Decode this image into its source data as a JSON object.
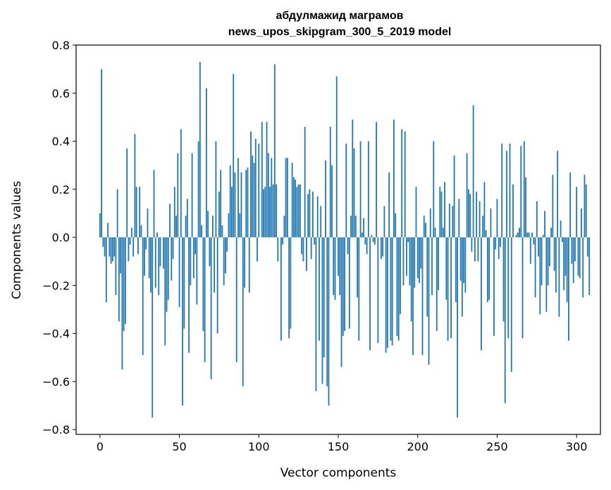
{
  "chart_data": {
    "type": "bar",
    "title": "абдулмажид маграмов",
    "subtitle": "news_upos_skipgram_300_5_2019 model",
    "xlabel": "Vector components",
    "ylabel": "Components values",
    "xlim": [
      -15,
      315
    ],
    "ylim": [
      -0.82,
      0.8
    ],
    "xticks": [
      0,
      50,
      100,
      150,
      200,
      250,
      300
    ],
    "xtick_labels": [
      "0",
      "50",
      "100",
      "150",
      "200",
      "250",
      "300"
    ],
    "yticks": [
      -0.8,
      -0.6,
      -0.4,
      -0.2,
      0.0,
      0.2,
      0.4,
      0.6,
      0.8
    ],
    "ytick_labels": [
      "−0.8",
      "−0.6",
      "−0.4",
      "−0.2",
      "0.0",
      "0.2",
      "0.4",
      "0.6",
      "0.8"
    ],
    "grid": false,
    "bar_color": "#1f77b4",
    "values": [
      0.1,
      0.7,
      -0.04,
      -0.08,
      -0.27,
      0.06,
      -0.08,
      -0.11,
      -0.1,
      -0.08,
      -0.24,
      0.2,
      -0.35,
      -0.15,
      -0.55,
      -0.39,
      -0.36,
      0.37,
      -0.1,
      -0.03,
      0.04,
      -0.08,
      0.43,
      0.21,
      -0.07,
      0.21,
      0.05,
      -0.49,
      -0.16,
      -0.05,
      0.12,
      -0.17,
      -0.23,
      -0.75,
      0.28,
      -0.21,
      0.02,
      -0.24,
      -0.12,
      0.0,
      -0.13,
      -0.45,
      -0.31,
      -0.26,
      0.14,
      -0.18,
      -0.09,
      0.21,
      0.09,
      0.35,
      -0.29,
      0.45,
      -0.7,
      -0.38,
      0.09,
      0.16,
      -0.48,
      -0.2,
      0.35,
      -0.17,
      -0.07,
      -0.28,
      0.4,
      0.73,
      0.05,
      -0.39,
      -0.52,
      0.62,
      0.11,
      -0.12,
      -0.59,
      0.09,
      -0.23,
      0.4,
      -0.4,
      0.19,
      0.28,
      0.05,
      -0.2,
      -0.15,
      -0.06,
      0.1,
      0.3,
      0.21,
      0.68,
      0.27,
      -0.52,
      0.33,
      0.1,
      0.27,
      -0.62,
      -0.21,
      0.28,
      0.29,
      -0.23,
      0.44,
      0.34,
      0.31,
      0.41,
      -0.1,
      0.39,
      0.0,
      0.48,
      0.2,
      0.21,
      0.48,
      0.35,
      0.21,
      0.33,
      0.22,
      0.72,
      0.22,
      -0.1,
      0.0,
      -0.43,
      -0.03,
      0.09,
      0.33,
      0.33,
      -0.42,
      -0.38,
      0.31,
      0.25,
      0.24,
      0.21,
      0.22,
      0.22,
      -0.07,
      -0.1,
      0.46,
      -0.14,
      0.18,
      0.2,
      -0.09,
      0.19,
      -0.03,
      -0.64,
      0.17,
      -0.43,
      0.13,
      -0.61,
      -0.5,
      0.32,
      -0.62,
      -0.7,
      0.46,
      0.3,
      -0.24,
      -0.26,
      0.67,
      -0.16,
      -0.24,
      -0.54,
      -0.41,
      -0.39,
      0.39,
      -0.07,
      -0.38,
      0.09,
      0.49,
      0.37,
      0.09,
      -0.25,
      -0.43,
      0.4,
      0.02,
      0.08,
      -0.03,
      -0.07,
      0.4,
      -0.47,
      0.01,
      -0.02,
      -0.03,
      0.48,
      -0.44,
      0.0,
      -0.09,
      -0.08,
      0.13,
      -0.48,
      -0.46,
      0.27,
      -0.43,
      -0.45,
      0.49,
      0.1,
      -0.41,
      -0.43,
      -0.32,
      0.45,
      -0.2,
      0.44,
      -0.16,
      -0.02,
      -0.2,
      -0.35,
      -0.49,
      -0.21,
      0.21,
      -0.17,
      -0.19,
      -0.13,
      -0.49,
      0.09,
      0.06,
      -0.33,
      -0.53,
      0.12,
      -0.24,
      0.4,
      0.04,
      -0.39,
      -0.22,
      0.21,
      0.19,
      0.04,
      0.23,
      -0.26,
      -0.43,
      0.14,
      -0.42,
      0.13,
      0.34,
      -0.27,
      -0.75,
      0.16,
      -0.18,
      -0.33,
      -0.19,
      -0.23,
      0.35,
      0.2,
      0.18,
      -0.06,
      0.55,
      -0.1,
      0.19,
      -0.1,
      0.15,
      -0.47,
      0.09,
      0.23,
      0.03,
      -0.27,
      -0.26,
      0.12,
      0.0,
      -0.41,
      -0.05,
      0.16,
      -0.09,
      -0.04,
      0.39,
      -0.35,
      -0.69,
      0.36,
      -0.42,
      0.39,
      -0.56,
      0.22,
      0.0,
      0.01,
      0.02,
      0.04,
      0.38,
      -0.42,
      0.4,
      0.25,
      0.02,
      0.02,
      -0.11,
      0.02,
      -0.03,
      -0.25,
      0.15,
      -0.08,
      -0.32,
      -0.2,
      0.01,
      0.11,
      -0.31,
      -0.2,
      -0.12,
      0.04,
      0.26,
      -0.14,
      -0.23,
      0.36,
      -0.33,
      0.07,
      -0.02,
      -0.22,
      -0.16,
      -0.27,
      -0.43,
      0.27,
      -0.11,
      -0.19,
      -0.1,
      0.21,
      -0.16,
      -0.17,
      0.12,
      -0.25,
      0.26,
      0.22,
      -0.08,
      -0.24
    ]
  }
}
